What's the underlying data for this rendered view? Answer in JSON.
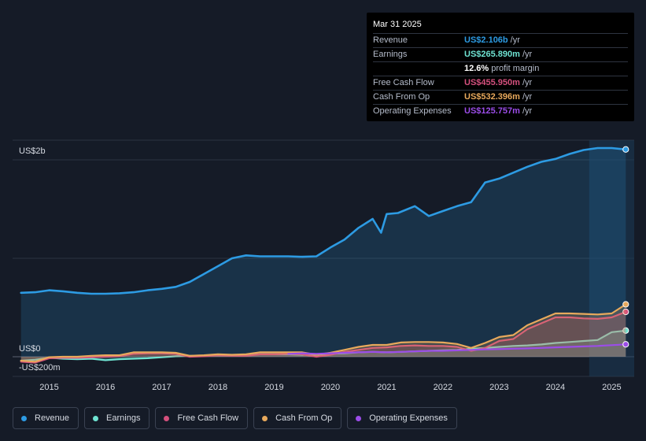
{
  "colors": {
    "revenue": "#2d9be3",
    "earnings": "#6fe3d2",
    "fcf": "#d4507d",
    "cfo": "#e8a95c",
    "opex": "#9b4de8",
    "forecast_shade": "#1b3a58"
  },
  "tooltip": {
    "date": "Mar 31 2025",
    "rows": [
      {
        "label": "Revenue",
        "value": "US$2.106b",
        "unit": "/yr",
        "color": "#2d9be3"
      },
      {
        "label": "Earnings",
        "value": "US$265.890m",
        "unit": "/yr",
        "color": "#6fe3d2"
      },
      {
        "label": "",
        "value": "12.6%",
        "unit": "profit margin",
        "color": "#ffffff"
      },
      {
        "label": "Free Cash Flow",
        "value": "US$455.950m",
        "unit": "/yr",
        "color": "#d4507d"
      },
      {
        "label": "Cash From Op",
        "value": "US$532.396m",
        "unit": "/yr",
        "color": "#e8a95c"
      },
      {
        "label": "Operating Expenses",
        "value": "US$125.757m",
        "unit": "/yr",
        "color": "#9b4de8"
      }
    ]
  },
  "legend": [
    {
      "label": "Revenue",
      "color": "#2d9be3"
    },
    {
      "label": "Earnings",
      "color": "#6fe3d2"
    },
    {
      "label": "Free Cash Flow",
      "color": "#d4507d"
    },
    {
      "label": "Cash From Op",
      "color": "#e8a95c"
    },
    {
      "label": "Operating Expenses",
      "color": "#9b4de8"
    }
  ],
  "chart_data": {
    "type": "area",
    "title": "",
    "y_unit": "US$ millions",
    "ylim": [
      -200,
      2200
    ],
    "y_labels": [
      {
        "value": 2000,
        "text": "US$2b"
      },
      {
        "value": 0,
        "text": "US$0"
      },
      {
        "value": -200,
        "text": "-US$200m"
      }
    ],
    "x_ticks": [
      "2015",
      "2016",
      "2017",
      "2018",
      "2019",
      "2020",
      "2021",
      "2022",
      "2023",
      "2024",
      "2025"
    ],
    "x_range": [
      2014.35,
      2025.4
    ],
    "forecast_from": 2024.6,
    "series": [
      {
        "name": "Revenue",
        "key": "revenue",
        "filled": true,
        "x": [
          2014.5,
          2014.75,
          2015.0,
          2015.25,
          2015.5,
          2015.75,
          2016.0,
          2016.25,
          2016.5,
          2016.75,
          2017.0,
          2017.25,
          2017.5,
          2017.75,
          2018.0,
          2018.25,
          2018.5,
          2018.75,
          2019.0,
          2019.25,
          2019.5,
          2019.75,
          2020.0,
          2020.25,
          2020.5,
          2020.75,
          2020.9,
          2021.0,
          2021.2,
          2021.5,
          2021.75,
          2022.0,
          2022.25,
          2022.5,
          2022.75,
          2023.0,
          2023.25,
          2023.5,
          2023.75,
          2024.0,
          2024.25,
          2024.5,
          2024.75,
          2025.0,
          2025.25
        ],
        "values": [
          650,
          655,
          675,
          665,
          650,
          640,
          640,
          645,
          655,
          675,
          690,
          710,
          760,
          840,
          920,
          1000,
          1030,
          1020,
          1020,
          1020,
          1015,
          1020,
          1110,
          1190,
          1310,
          1400,
          1260,
          1450,
          1460,
          1530,
          1430,
          1480,
          1530,
          1570,
          1770,
          1810,
          1870,
          1930,
          1980,
          2010,
          2060,
          2100,
          2120,
          2120,
          2106
        ]
      },
      {
        "name": "Earnings",
        "key": "earnings",
        "filled": true,
        "x": [
          2014.5,
          2014.75,
          2015.0,
          2015.25,
          2015.5,
          2015.75,
          2016.0,
          2016.25,
          2016.5,
          2016.75,
          2017.0,
          2017.25,
          2017.5,
          2017.75,
          2018.0,
          2018.25,
          2018.5,
          2018.75,
          2019.0,
          2019.25,
          2019.5,
          2019.75,
          2020.0,
          2020.25,
          2020.5,
          2020.75,
          2021.0,
          2021.25,
          2021.5,
          2021.75,
          2022.0,
          2022.25,
          2022.5,
          2022.75,
          2023.0,
          2023.25,
          2023.5,
          2023.75,
          2024.0,
          2024.25,
          2024.5,
          2024.75,
          2025.0,
          2025.25
        ],
        "values": [
          -40,
          -30,
          -10,
          -20,
          -25,
          -20,
          -35,
          -25,
          -20,
          -15,
          -5,
          5,
          10,
          10,
          15,
          15,
          20,
          25,
          25,
          25,
          20,
          20,
          30,
          35,
          45,
          50,
          45,
          50,
          55,
          60,
          65,
          70,
          80,
          90,
          100,
          110,
          115,
          125,
          140,
          150,
          160,
          170,
          250,
          266
        ]
      },
      {
        "name": "Free Cash Flow",
        "key": "fcf",
        "filled": true,
        "x": [
          2014.5,
          2014.75,
          2015.0,
          2015.25,
          2015.5,
          2015.75,
          2016.0,
          2016.25,
          2016.5,
          2016.75,
          2017.0,
          2017.25,
          2017.5,
          2017.75,
          2018.0,
          2018.25,
          2018.5,
          2018.75,
          2019.0,
          2019.25,
          2019.5,
          2019.75,
          2020.0,
          2020.25,
          2020.5,
          2020.75,
          2021.0,
          2021.25,
          2021.5,
          2021.75,
          2022.0,
          2022.25,
          2022.5,
          2022.75,
          2023.0,
          2023.25,
          2023.5,
          2023.75,
          2024.0,
          2024.25,
          2024.5,
          2024.75,
          2025.0,
          2025.25
        ],
        "values": [
          -50,
          -60,
          -15,
          -10,
          -10,
          -5,
          0,
          5,
          30,
          35,
          35,
          30,
          0,
          5,
          15,
          10,
          10,
          25,
          25,
          30,
          25,
          0,
          20,
          50,
          70,
          90,
          95,
          110,
          115,
          110,
          110,
          100,
          60,
          90,
          160,
          180,
          280,
          340,
          400,
          400,
          390,
          385,
          400,
          456
        ]
      },
      {
        "name": "Cash From Op",
        "key": "cfo",
        "filled": true,
        "x": [
          2014.5,
          2014.75,
          2015.0,
          2015.25,
          2015.5,
          2015.75,
          2016.0,
          2016.25,
          2016.5,
          2016.75,
          2017.0,
          2017.25,
          2017.5,
          2017.75,
          2018.0,
          2018.25,
          2018.5,
          2018.75,
          2019.0,
          2019.25,
          2019.5,
          2019.75,
          2020.0,
          2020.25,
          2020.5,
          2020.75,
          2021.0,
          2021.25,
          2021.5,
          2021.75,
          2022.0,
          2022.25,
          2022.5,
          2022.75,
          2023.0,
          2023.25,
          2023.5,
          2023.75,
          2024.0,
          2024.25,
          2024.5,
          2024.75,
          2025.0,
          2025.25
        ],
        "values": [
          -40,
          -50,
          -5,
          0,
          0,
          10,
          15,
          15,
          45,
          45,
          45,
          40,
          10,
          15,
          25,
          20,
          25,
          45,
          45,
          45,
          45,
          20,
          40,
          70,
          100,
          120,
          120,
          145,
          150,
          150,
          145,
          130,
          90,
          140,
          200,
          220,
          320,
          380,
          440,
          440,
          435,
          430,
          440,
          532
        ]
      },
      {
        "name": "Operating Expenses",
        "key": "opex",
        "filled": false,
        "x": [
          2019.25,
          2019.5,
          2019.75,
          2020.0,
          2020.25,
          2020.5,
          2020.75,
          2021.0,
          2021.25,
          2021.5,
          2021.75,
          2022.0,
          2022.25,
          2022.5,
          2022.75,
          2023.0,
          2023.25,
          2023.5,
          2023.75,
          2024.0,
          2024.25,
          2024.5,
          2024.75,
          2025.0,
          2025.25
        ],
        "values": [
          30,
          35,
          30,
          35,
          40,
          45,
          50,
          45,
          50,
          55,
          60,
          60,
          65,
          70,
          75,
          78,
          82,
          85,
          90,
          95,
          100,
          105,
          110,
          118,
          126
        ]
      }
    ]
  }
}
